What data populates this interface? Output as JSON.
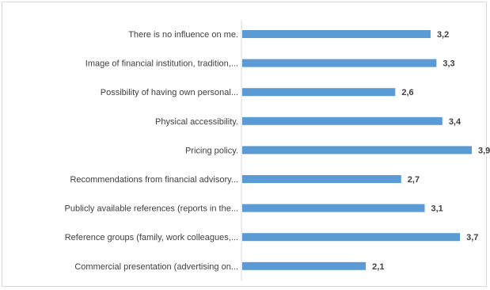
{
  "chart_data": {
    "type": "bar",
    "orientation": "horizontal",
    "categories": [
      "There is no influence on me.",
      "Image of financial institution, tradition,...",
      "Possibility of having  own personal...",
      "Physical accessibility.",
      "Pricing policy.",
      "Recommendations from financial advisory...",
      "Publicly available references (reports in the...",
      "Reference groups (family, work colleagues,...",
      "Commercial presentation (advertising on..."
    ],
    "values": [
      3.2,
      3.3,
      2.6,
      3.4,
      3.9,
      2.7,
      3.1,
      3.7,
      2.1
    ],
    "value_labels": [
      "3,2",
      "3,3",
      "2,6",
      "3,4",
      "3,9",
      "2,7",
      "3,1",
      "3,7",
      "2,1"
    ],
    "xlim": [
      0,
      3.9
    ],
    "grid": false,
    "legend": "none",
    "bar_color": "#5b9bd5"
  }
}
